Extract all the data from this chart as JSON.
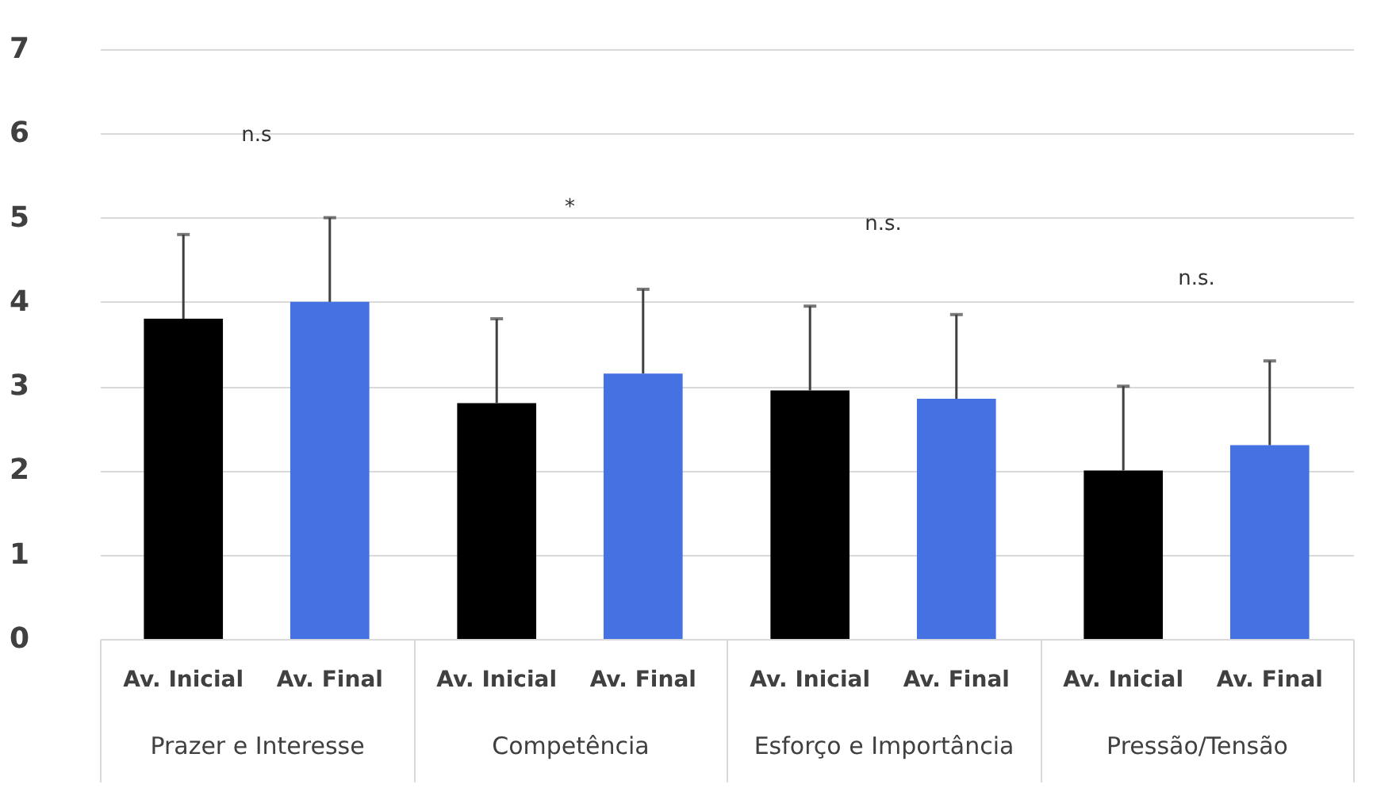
{
  "chart_data": {
    "type": "bar",
    "categories": [
      "Prazer e Interesse",
      "Competência",
      "Esforço e Importância",
      "Pressão/Tensão"
    ],
    "series": [
      {
        "name": "Av. Inicial",
        "color": "#000000",
        "values": [
          3.8,
          2.8,
          2.95,
          2.0
        ],
        "errors": [
          [
            3.8,
            4.8
          ],
          [
            2.8,
            3.8
          ],
          [
            2.95,
            3.95
          ],
          [
            2.0,
            3.0
          ]
        ]
      },
      {
        "name": "Av. Final",
        "color": "#4472e2",
        "values": [
          4.0,
          3.15,
          2.85,
          2.3
        ],
        "errors": [
          [
            4.0,
            5.0
          ],
          [
            3.15,
            4.15
          ],
          [
            2.85,
            3.85
          ],
          [
            2.3,
            3.3
          ]
        ]
      }
    ],
    "ylim": [
      0,
      7
    ],
    "yticks": [
      0,
      1,
      2,
      3,
      4,
      5,
      6,
      7
    ],
    "grid": "y",
    "annotations": [
      "n.s",
      "*",
      "n.s.",
      "n.s."
    ]
  }
}
